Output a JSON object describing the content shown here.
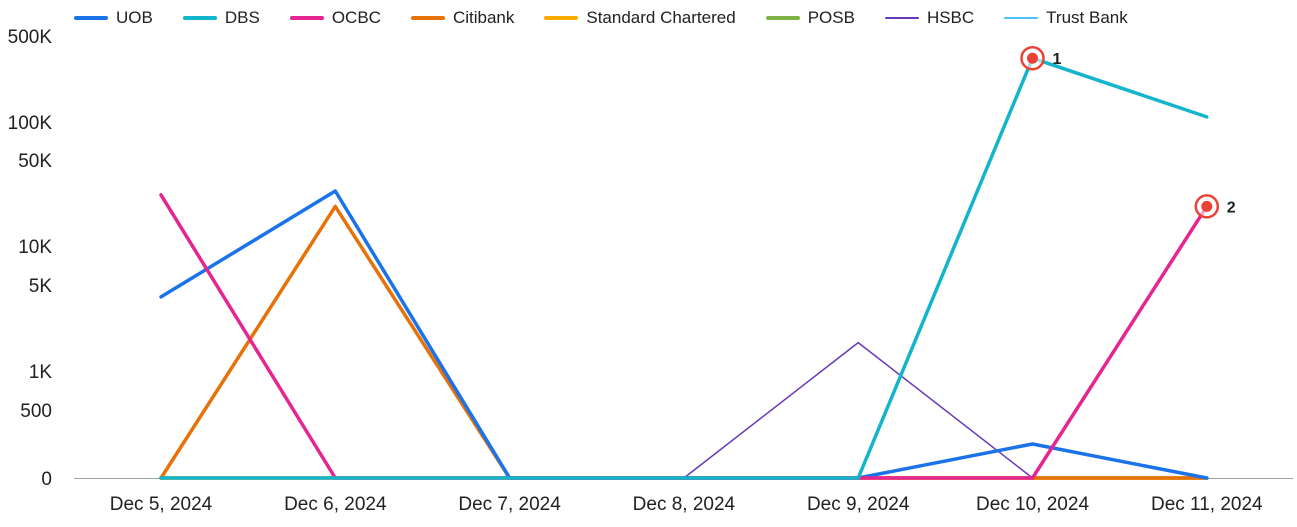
{
  "chart_data": {
    "type": "line",
    "yscale": "symlog",
    "categories": [
      "Dec 5, 2024",
      "Dec 6, 2024",
      "Dec 7, 2024",
      "Dec 8, 2024",
      "Dec 9, 2024",
      "Dec 10, 2024",
      "Dec 11, 2024"
    ],
    "y_ticks": [
      {
        "value": 0,
        "label": "0"
      },
      {
        "value": 500,
        "label": "500"
      },
      {
        "value": 1000,
        "label": "1K"
      },
      {
        "value": 5000,
        "label": "5K"
      },
      {
        "value": 10000,
        "label": "10K"
      },
      {
        "value": 50000,
        "label": "50K"
      },
      {
        "value": 100000,
        "label": "100K"
      },
      {
        "value": 500000,
        "label": "500K"
      }
    ],
    "series": [
      {
        "name": "UOB",
        "color": "#1a73e8",
        "width": 3.5,
        "values": [
          4000,
          28000,
          0,
          0,
          0,
          250,
          0
        ]
      },
      {
        "name": "DBS",
        "color": "#12b5cb",
        "width": 3.5,
        "values": [
          0,
          0,
          0,
          0,
          0,
          330000,
          110000
        ]
      },
      {
        "name": "OCBC",
        "color": "#e52592",
        "width": 3.5,
        "values": [
          26000,
          0,
          0,
          0,
          0,
          0,
          21000
        ]
      },
      {
        "name": "Citibank",
        "color": "#e8710a",
        "width": 3.5,
        "values": [
          0,
          21000,
          0,
          0,
          0,
          0,
          0
        ]
      },
      {
        "name": "Standard Chartered",
        "color": "#f9ab00",
        "width": 3.5,
        "values": [
          0,
          0,
          0,
          0,
          0,
          0,
          0
        ]
      },
      {
        "name": "POSB",
        "color": "#7cb342",
        "width": 3.5,
        "values": [
          0,
          0,
          0,
          0,
          0,
          0,
          0
        ]
      },
      {
        "name": "HSBC",
        "color": "#673ab7",
        "width": 1.5,
        "values": [
          0,
          0,
          0,
          0,
          1700,
          0,
          0
        ]
      },
      {
        "name": "Trust Bank",
        "color": "#4fc3f7",
        "width": 1.5,
        "values": [
          0,
          0,
          0,
          0,
          0,
          0,
          0
        ]
      }
    ],
    "annotations": [
      {
        "label": "1",
        "series": "DBS",
        "category": "Dec 10, 2024",
        "value": 330000
      },
      {
        "label": "2",
        "series": "OCBC",
        "category": "Dec 11, 2024",
        "value": 21000
      }
    ],
    "annotation_color": "#ea4335",
    "axis_color": "#9aa0a6",
    "legend_position": "top-left",
    "grid": false
  }
}
